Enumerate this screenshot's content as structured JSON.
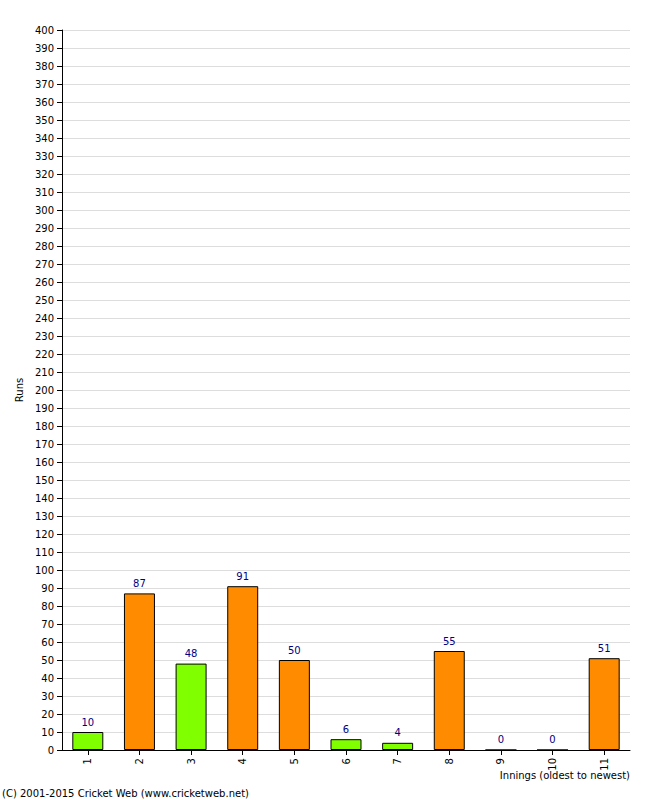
{
  "chart_data": {
    "type": "bar",
    "y_label": "Runs",
    "x_label": "Innings (oldest to newest)",
    "annotation": "(C) 2001-2015 Cricket Web (www.cricketweb.net)",
    "categories": [
      "1",
      "2",
      "3",
      "4",
      "5",
      "6",
      "7",
      "8",
      "9",
      "10",
      "11"
    ],
    "values": [
      10,
      87,
      48,
      91,
      50,
      6,
      4,
      55,
      0,
      0,
      51
    ],
    "colors": [
      "#80ff00",
      "#ff8c00",
      "#80ff00",
      "#ff8c00",
      "#ff8c00",
      "#80ff00",
      "#80ff00",
      "#ff8c00",
      "#ff8c00",
      "#ff8c00",
      "#ff8c00"
    ],
    "ylim": [
      0,
      400
    ],
    "yticks": [
      0,
      10,
      20,
      30,
      40,
      50,
      60,
      70,
      80,
      90,
      100,
      110,
      120,
      130,
      140,
      150,
      160,
      170,
      180,
      190,
      200,
      210,
      220,
      230,
      240,
      250,
      260,
      270,
      280,
      290,
      300,
      310,
      320,
      330,
      340,
      350,
      360,
      370,
      380,
      390,
      400
    ],
    "grid": true,
    "data_labels": true
  }
}
